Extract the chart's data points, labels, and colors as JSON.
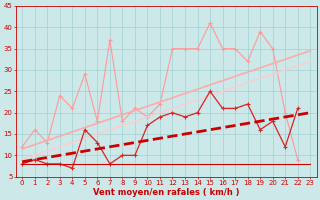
{
  "x": [
    0,
    1,
    2,
    3,
    4,
    5,
    6,
    7,
    8,
    9,
    10,
    11,
    12,
    13,
    14,
    15,
    16,
    17,
    18,
    19,
    20,
    21,
    22,
    23
  ],
  "series": [
    {
      "name": "rafales_light",
      "color": "#ff9999",
      "linewidth": 0.8,
      "marker": "+",
      "markersize": 3,
      "markeredgewidth": 0.8,
      "dashed": false,
      "values": [
        12,
        16,
        13,
        24,
        21,
        29,
        18,
        37,
        18,
        21,
        19,
        22,
        35,
        35,
        35,
        41,
        35,
        35,
        32,
        39,
        35,
        20,
        9,
        null
      ]
    },
    {
      "name": "linear_upper",
      "color": "#ffaaaa",
      "linewidth": 1.2,
      "marker": null,
      "markersize": 0,
      "markeredgewidth": 0,
      "dashed": false,
      "values": [
        11.5,
        12.5,
        13.5,
        14.5,
        15.5,
        16.5,
        17.5,
        18.5,
        19.5,
        20.5,
        21.5,
        22.5,
        23.5,
        24.5,
        25.5,
        26.5,
        27.5,
        28.5,
        29.5,
        30.5,
        31.5,
        32.5,
        33.5,
        34.5
      ]
    },
    {
      "name": "linear_lower_light",
      "color": "#ffcccc",
      "linewidth": 1.0,
      "marker": null,
      "markersize": 0,
      "markeredgewidth": 0,
      "dashed": false,
      "values": [
        9,
        10,
        11,
        12,
        13,
        14,
        15,
        16,
        17,
        18,
        19,
        20,
        21,
        22,
        23,
        24,
        25,
        26,
        27,
        28,
        29,
        30,
        31,
        32
      ]
    },
    {
      "name": "vent_moyen_dark",
      "color": "#dd2222",
      "linewidth": 0.9,
      "marker": "+",
      "markersize": 3,
      "markeredgewidth": 0.8,
      "dashed": false,
      "values": [
        8,
        9,
        8,
        8,
        7,
        16,
        13,
        8,
        10,
        10,
        17,
        19,
        20,
        19,
        20,
        25,
        21,
        21,
        22,
        16,
        18,
        12,
        21,
        null
      ]
    },
    {
      "name": "vent_min_line",
      "color": "#cc0000",
      "linewidth": 0.8,
      "marker": null,
      "markersize": 0,
      "markeredgewidth": 0,
      "dashed": false,
      "values": [
        8,
        8,
        8,
        8,
        8,
        8,
        8,
        8,
        8,
        8,
        8,
        8,
        8,
        8,
        8,
        8,
        8,
        8,
        8,
        8,
        8,
        8,
        8,
        8
      ]
    },
    {
      "name": "linear_trend_dashed",
      "color": "#cc0000",
      "linewidth": 2.0,
      "marker": null,
      "markersize": 0,
      "markeredgewidth": 0,
      "dashed": true,
      "values": [
        8.5,
        9.0,
        9.5,
        10.0,
        10.5,
        11.0,
        11.5,
        12.0,
        12.5,
        13.0,
        13.5,
        14.0,
        14.5,
        15.0,
        15.5,
        16.0,
        16.5,
        17.0,
        17.5,
        18.0,
        18.5,
        19.0,
        19.5,
        20.0
      ]
    }
  ],
  "xlim_min": -0.5,
  "xlim_max": 23.5,
  "ylim_min": 5,
  "ylim_max": 45,
  "yticks": [
    5,
    10,
    15,
    20,
    25,
    30,
    35,
    40,
    45
  ],
  "xticks": [
    0,
    1,
    2,
    3,
    4,
    5,
    6,
    7,
    8,
    9,
    10,
    11,
    12,
    13,
    14,
    15,
    16,
    17,
    18,
    19,
    20,
    21,
    22,
    23
  ],
  "xlabel": "Vent moyen/en rafales ( km/h )",
  "bg_color": "#cce8e8",
  "grid_color": "#99cccc",
  "axis_color": "#cc0000",
  "label_color": "#cc0000",
  "tick_color": "#cc0000",
  "tick_fontsize": 5,
  "xlabel_fontsize": 6,
  "fig_width": 3.2,
  "fig_height": 2.0,
  "dpi": 100
}
